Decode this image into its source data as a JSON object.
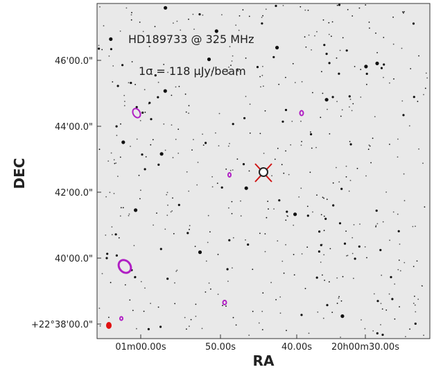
{
  "image": {
    "title": "HD189733 @ 325 MHz",
    "annotation": "1σ = 118 μJy/beam",
    "xlabel": "RA",
    "ylabel": "DEC",
    "xticks": [
      "01m00.00s",
      "50.00s",
      "40.00s",
      "20h00m30.00s"
    ],
    "yticks": [
      "46'00.0\"",
      "44'00.0\"",
      "42'00.0\"",
      "40'00.0\"",
      "+22°38'00.0\""
    ]
  }
}
